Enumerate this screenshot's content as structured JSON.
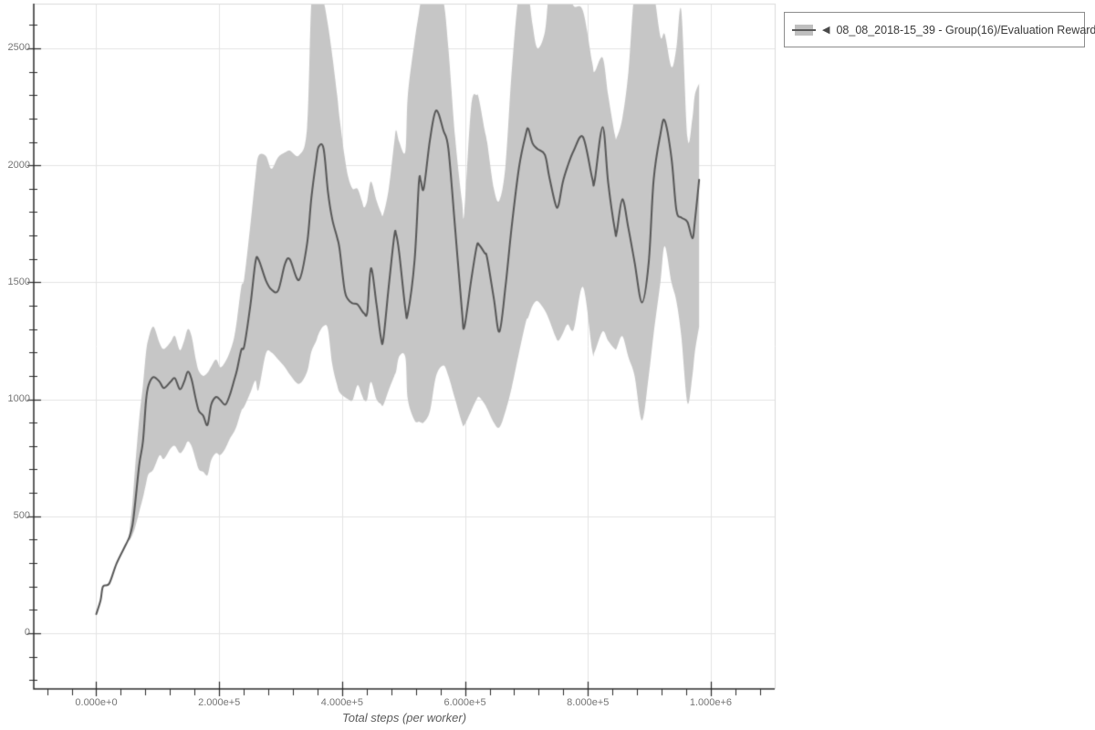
{
  "legend": {
    "arrow": "◀",
    "label": "08_08_2018-15_39 - Group(16)/Evaluation Reward"
  },
  "colors": {
    "background": "#ffffff",
    "grid": "#e4e4e4",
    "spine_dark": "#2b2b2b",
    "spine_light": "#dcdcdc",
    "tick_label": "#757575",
    "axis_label": "#5c5c5c",
    "legend_border": "#8c8c8c",
    "line": "#585858",
    "band": "#c6c6c6"
  },
  "chart_data": {
    "type": "line",
    "title": "",
    "xlabel": "Total steps (per worker)",
    "ylabel": "",
    "grid": true,
    "legend_position": "outside-top-right",
    "xlim": [
      -101700,
      1104000
    ],
    "ylim": [
      -238,
      2691
    ],
    "x_ticks": {
      "values": [
        0,
        200000,
        400000,
        600000,
        800000,
        1000000
      ],
      "labels": [
        "0.000e+0",
        "2.000e+5",
        "4.000e+5",
        "6.000e+5",
        "8.000e+5",
        "1.000e+6"
      ],
      "minor_interval": 40000
    },
    "y_ticks": {
      "values": [
        0,
        500,
        1000,
        1500,
        2000,
        2500
      ],
      "labels": [
        "0",
        "500",
        "1000",
        "1500",
        "2000",
        "2500"
      ],
      "minor_interval": 100
    },
    "series": [
      {
        "name": "08_08_2018-15_39 - Group(16)/Evaluation Reward",
        "line_color": "#585858",
        "band_color": "#c6c6c6",
        "steps": [
          0,
          7000,
          11000,
          21000,
          33000,
          48000,
          54000,
          59000,
          63000,
          70000,
          76000,
          81000,
          85000,
          93000,
          103000,
          110000,
          121000,
          128000,
          136000,
          143000,
          149000,
          155000,
          162000,
          167000,
          174000,
          181000,
          187000,
          195000,
          202000,
          210000,
          217000,
          224000,
          229000,
          236000,
          241000,
          251000,
          259000,
          264000,
          276000,
          285000,
          296000,
          307000,
          315000,
          330000,
          343000,
          350000,
          358000,
          362000,
          370000,
          377000,
          384000,
          392000,
          396000,
          404000,
          410000,
          417000,
          425000,
          432000,
          436000,
          441000,
          447000,
          456000,
          463000,
          467000,
          476000,
          485000,
          488000,
          493000,
          503000,
          507000,
          518000,
          525000,
          528000,
          533000,
          543000,
          553000,
          565000,
          573000,
          584000,
          595000,
          599000,
          610000,
          619000,
          623000,
          632000,
          636000,
          647000,
          656000,
          666000,
          676000,
          688000,
          699000,
          703000,
          710000,
          718000,
          730000,
          737000,
          747000,
          752000,
          759000,
          767000,
          777000,
          792000,
          807000,
          811000,
          824000,
          833000,
          844000,
          847000,
          856000,
          866000,
          876000,
          888000,
          899000,
          907000,
          918000,
          925000,
          936000,
          944000,
          952000,
          962000,
          970000,
          974000,
          981000
        ],
        "mean": [
          82,
          140,
          200,
          212,
          298,
          378,
          412,
          462,
          548,
          722,
          820,
          995,
          1060,
          1095,
          1075,
          1048,
          1075,
          1090,
          1043,
          1075,
          1118,
          1086,
          1000,
          950,
          930,
          890,
          977,
          1010,
          996,
          977,
          1016,
          1078,
          1125,
          1211,
          1230,
          1406,
          1586,
          1598,
          1508,
          1469,
          1465,
          1578,
          1598,
          1510,
          1664,
          1860,
          2023,
          2080,
          2070,
          1887,
          1770,
          1691,
          1641,
          1469,
          1426,
          1410,
          1406,
          1379,
          1367,
          1372,
          1560,
          1406,
          1266,
          1254,
          1484,
          1699,
          1705,
          1625,
          1387,
          1367,
          1594,
          1926,
          1934,
          1902,
          2109,
          2234,
          2148,
          2070,
          1730,
          1379,
          1309,
          1508,
          1652,
          1660,
          1625,
          1605,
          1430,
          1289,
          1484,
          1738,
          1992,
          2133,
          2156,
          2094,
          2070,
          2045,
          1953,
          1836,
          1828,
          1926,
          1996,
          2063,
          2121,
          1945,
          1934,
          2164,
          1926,
          1723,
          1715,
          1855,
          1730,
          1586,
          1414,
          1586,
          1938,
          2133,
          2191,
          2031,
          1809,
          1777,
          1758,
          1688,
          1758,
          1938
        ],
        "band_lo": [
          null,
          null,
          null,
          null,
          null,
          null,
          395,
          420,
          450,
          520,
          580,
          640,
          680,
          700,
          760,
          745,
          790,
          800,
          770,
          790,
          820,
          800,
          740,
          700,
          690,
          676,
          740,
          770,
          762,
          790,
          830,
          860,
          890,
          950,
          970,
          1030,
          1080,
          1040,
          1195,
          1200,
          1170,
          1137,
          1106,
          1066,
          1117,
          1203,
          1250,
          1280,
          1313,
          1300,
          1150,
          1060,
          1030,
          1010,
          1000,
          996,
          1060,
          1020,
          996,
          1000,
          1074,
          1000,
          980,
          975,
          1040,
          1100,
          1120,
          1184,
          1180,
          1000,
          910,
          905,
          902,
          902,
          950,
          1100,
          1145,
          1100,
          1000,
          900,
          890,
          950,
          1000,
          1010,
          980,
          960,
          900,
          880,
          950,
          1050,
          1200,
          1330,
          1350,
          1400,
          1420,
          1380,
          1340,
          1270,
          1250,
          1280,
          1320,
          1300,
          1480,
          1210,
          1203,
          1290,
          1250,
          1215,
          1220,
          1270,
          1180,
          1100,
          910,
          1100,
          1280,
          1500,
          1655,
          1500,
          1420,
          1270,
          985,
          1100,
          1200,
          1310
        ],
        "band_hi": [
          null,
          null,
          null,
          null,
          null,
          null,
          435,
          560,
          700,
          920,
          1060,
          1200,
          1260,
          1310,
          1240,
          1215,
          1245,
          1270,
          1210,
          1250,
          1300,
          1270,
          1170,
          1120,
          1100,
          1113,
          1140,
          1170,
          1137,
          1160,
          1200,
          1260,
          1340,
          1480,
          1520,
          1750,
          1950,
          2040,
          2040,
          1985,
          2035,
          2055,
          2063,
          2043,
          2160,
          2695,
          2740,
          2740,
          2700,
          2600,
          2470,
          2300,
          2200,
          2040,
          1950,
          1900,
          1900,
          1850,
          1820,
          1850,
          1930,
          1850,
          1800,
          1790,
          1900,
          2100,
          2150,
          2100,
          2060,
          2300,
          2530,
          2650,
          2700,
          2745,
          2745,
          2745,
          2700,
          2500,
          2120,
          1850,
          1800,
          2250,
          2300,
          2280,
          2150,
          2100,
          1900,
          1850,
          2000,
          2400,
          2740,
          2740,
          2740,
          2600,
          2500,
          2570,
          2740,
          2740,
          2740,
          2740,
          2740,
          2680,
          2660,
          2440,
          2400,
          2460,
          2300,
          2130,
          2120,
          2200,
          2400,
          2740,
          2740,
          2740,
          2740,
          2550,
          2560,
          2420,
          2500,
          2660,
          2120,
          2200,
          2300,
          2350
        ]
      }
    ]
  }
}
